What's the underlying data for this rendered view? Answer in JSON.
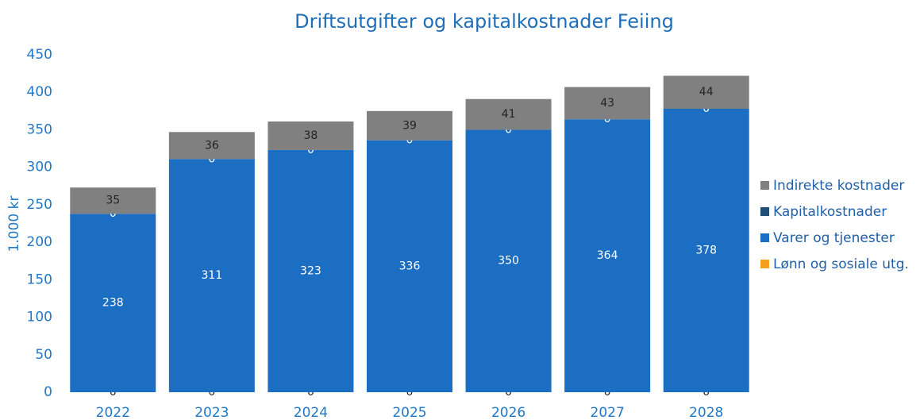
{
  "chart_data": {
    "type": "stacked_bar",
    "title": "Driftsutgifter og kapitalkostnader Feiing",
    "y_label": "1.000 kr",
    "categories": [
      "2022",
      "2023",
      "2024",
      "2025",
      "2026",
      "2027",
      "2028"
    ],
    "series": [
      {
        "name": "Lønn og sosiale utg.",
        "color": "#f5a01e",
        "values": [
          0,
          0,
          0,
          0,
          0,
          0,
          0
        ]
      },
      {
        "name": "Varer og tjenester",
        "color": "#1b6ec2",
        "values": [
          238,
          311,
          323,
          336,
          350,
          364,
          378
        ]
      },
      {
        "name": "Kapitalkostnader",
        "color": "#1f4e79",
        "values": [
          0,
          0,
          0,
          0,
          0,
          0,
          0
        ]
      },
      {
        "name": "Indirekte kostnader",
        "color": "#808080",
        "values": [
          35,
          36,
          38,
          39,
          41,
          43,
          44
        ]
      }
    ],
    "ylim": [
      0,
      450
    ],
    "yticks": [
      0,
      50,
      100,
      150,
      200,
      250,
      300,
      350,
      400,
      450
    ],
    "legend": "right"
  }
}
